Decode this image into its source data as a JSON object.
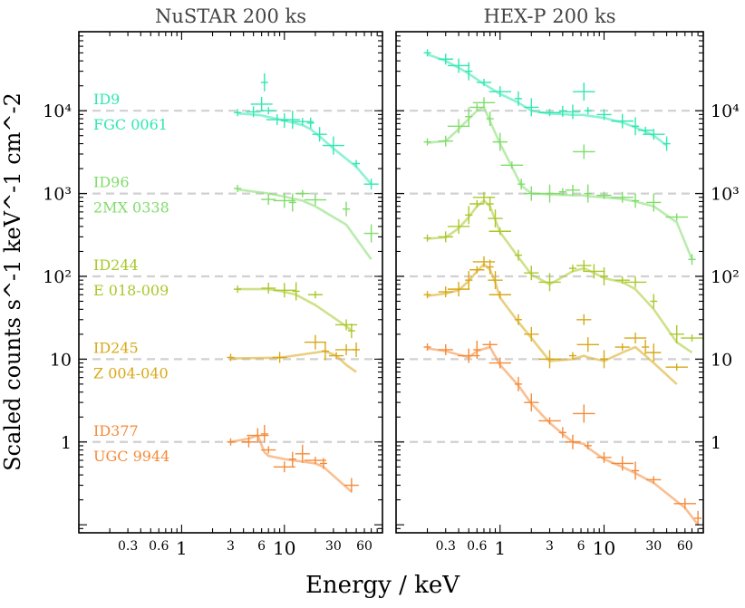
{
  "chart_data": [
    {
      "type": "line",
      "title": "NuSTAR 200 ks",
      "xlabel": "Energy / keV",
      "ylabel": "Scaled counts s^-1 keV^-1 cm^-2",
      "xscale": "log",
      "yscale": "log",
      "xlim": [
        0.1,
        90
      ],
      "ylim": [
        0.08,
        90000
      ],
      "xticks": [
        0.3,
        0.6,
        1,
        3,
        6,
        10,
        30,
        60
      ],
      "xtick_labels": [
        "0.3",
        "0.6",
        "1",
        "3",
        "6",
        "10",
        "30",
        "60"
      ],
      "yticks": [
        1,
        10,
        100,
        1000,
        10000
      ],
      "ytick_labels": [
        "1",
        "10",
        "10²",
        "10³",
        "10⁴"
      ],
      "reference_lines_y": [
        1,
        10,
        100,
        1000,
        10000
      ],
      "series": [
        {
          "name": "ID9",
          "label": "FGC 0061",
          "color": "#2ee8b0",
          "x": [
            3.5,
            5.0,
            6.0,
            6.4,
            7.0,
            8.5,
            10,
            12,
            15,
            18,
            22,
            30,
            50,
            70
          ],
          "y": [
            9500,
            9700,
            12000,
            22000,
            10000,
            7800,
            7600,
            7800,
            7400,
            7100,
            5200,
            3800,
            2300,
            1300
          ],
          "model_y": [
            9300,
            9000,
            8800,
            8600,
            8400,
            8000,
            7600,
            7200,
            6700,
            6000,
            4900,
            3500,
            2100,
            1300
          ]
        },
        {
          "name": "ID96",
          "label": "2MX 0338",
          "color": "#7fdc6a",
          "x": [
            3.5,
            7.0,
            10,
            12,
            15,
            20,
            40,
            70
          ],
          "y": [
            1150,
            850,
            820,
            780,
            1000,
            840,
            650,
            330
          ],
          "model_y": [
            1120,
            1000,
            920,
            870,
            820,
            700,
            420,
            160
          ]
        },
        {
          "name": "ID244",
          "label": "E 018-009",
          "color": "#a8c82a",
          "x": [
            3.5,
            7.0,
            10,
            13,
            20,
            40,
            45
          ],
          "y": [
            70,
            72,
            68,
            66,
            60,
            26,
            22
          ],
          "model_y": [
            70,
            70,
            65,
            60,
            45,
            25,
            22
          ]
        },
        {
          "name": "ID245",
          "label": "Z 004-040",
          "color": "#d8a818",
          "x": [
            3.0,
            9.0,
            20,
            25,
            32,
            40,
            50
          ],
          "y": [
            10.5,
            10.5,
            16,
            12.5,
            11,
            13,
            13
          ],
          "model_y": [
            10.2,
            10.4,
            12,
            12.5,
            11,
            8.5,
            7
          ]
        },
        {
          "name": "ID377",
          "label": "UGC 9944",
          "color": "#f58a38",
          "x": [
            3.0,
            4.5,
            5.5,
            6.4,
            7.0,
            10,
            12,
            15,
            20,
            24,
            45
          ],
          "y": [
            1.0,
            1.0,
            1.2,
            1.25,
            0.8,
            0.5,
            0.62,
            0.72,
            0.6,
            0.55,
            0.3
          ],
          "model_y": [
            1.0,
            1.1,
            1.2,
            0.75,
            0.68,
            0.62,
            0.6,
            0.58,
            0.55,
            0.5,
            0.25
          ]
        }
      ]
    },
    {
      "type": "line",
      "title": "HEX-P 200 ks",
      "xlabel": "Energy / keV",
      "xscale": "log",
      "yscale": "log",
      "xlim": [
        0.1,
        90
      ],
      "ylim": [
        0.08,
        90000
      ],
      "xticks": [
        0.3,
        0.6,
        1,
        3,
        6,
        10,
        30,
        60
      ],
      "xtick_labels": [
        "0.3",
        "0.6",
        "1",
        "3",
        "6",
        "10",
        "30",
        "60"
      ],
      "yticks": [
        1,
        10,
        100,
        1000,
        10000
      ],
      "ytick_labels": [
        "1",
        "10",
        "10²",
        "10³",
        "10⁴"
      ],
      "reference_lines_y": [
        1,
        10,
        100,
        1000,
        10000
      ],
      "series": [
        {
          "name": "ID9",
          "color": "#2ee8b0",
          "x": [
            0.2,
            0.3,
            0.4,
            0.5,
            0.7,
            1.0,
            1.5,
            2.0,
            3.0,
            4.0,
            5.0,
            6.4,
            7.0,
            10,
            15,
            20,
            25,
            30,
            40
          ],
          "y": [
            50000,
            42000,
            35000,
            30000,
            22000,
            17000,
            14000,
            11000,
            9500,
            9800,
            9700,
            17000,
            10000,
            9000,
            7500,
            6500,
            5800,
            5200,
            4000
          ],
          "model_y": [
            48000,
            40000,
            33000,
            28000,
            21000,
            16000,
            12500,
            10000,
            9200,
            9100,
            8900,
            8900,
            8700,
            8200,
            7200,
            6300,
            5600,
            5000,
            3800
          ]
        },
        {
          "name": "ID96",
          "color": "#7fdc6a",
          "x": [
            0.2,
            0.3,
            0.4,
            0.5,
            0.6,
            0.7,
            0.8,
            1.0,
            1.3,
            1.6,
            2.0,
            3.0,
            4.0,
            5.0,
            6.4,
            7.0,
            10,
            15,
            20,
            30,
            50,
            70
          ],
          "y": [
            4200,
            4300,
            6500,
            8500,
            11000,
            12500,
            8000,
            4200,
            2200,
            1300,
            1000,
            1000,
            1050,
            1100,
            3200,
            1000,
            950,
            900,
            820,
            780,
            520,
            160
          ],
          "model_y": [
            4100,
            4300,
            6000,
            8000,
            10000,
            11000,
            7500,
            4000,
            2100,
            1250,
            1000,
            980,
            960,
            950,
            950,
            930,
            900,
            860,
            800,
            700,
            450,
            160
          ]
        },
        {
          "name": "ID244",
          "color": "#a8c82a",
          "x": [
            0.2,
            0.3,
            0.4,
            0.5,
            0.6,
            0.7,
            0.8,
            0.9,
            1.0,
            1.5,
            2.0,
            3.0,
            5.0,
            6.4,
            8.0,
            10,
            15,
            20,
            30,
            50,
            70
          ],
          "y": [
            290,
            300,
            400,
            550,
            750,
            900,
            750,
            500,
            350,
            180,
            110,
            85,
            125,
            135,
            115,
            100,
            90,
            85,
            50,
            20,
            18
          ],
          "model_y": [
            285,
            295,
            380,
            520,
            700,
            820,
            700,
            480,
            340,
            170,
            105,
            80,
            115,
            125,
            110,
            95,
            85,
            70,
            40,
            16,
            12
          ]
        },
        {
          "name": "ID245",
          "color": "#d8a818",
          "x": [
            0.2,
            0.3,
            0.4,
            0.5,
            0.6,
            0.7,
            0.8,
            0.9,
            1.0,
            1.5,
            2.0,
            3.0,
            5.0,
            6.4,
            7.0,
            10,
            15,
            20,
            25,
            30,
            50
          ],
          "y": [
            60,
            65,
            70,
            90,
            120,
            150,
            130,
            90,
            60,
            30,
            20,
            10,
            11,
            30,
            15,
            10,
            14,
            18,
            14,
            12,
            8
          ],
          "model_y": [
            58,
            62,
            68,
            88,
            115,
            140,
            120,
            85,
            55,
            28,
            18,
            9.5,
            10,
            11,
            10.5,
            9.5,
            12,
            14,
            11,
            9,
            5
          ]
        },
        {
          "name": "ID377",
          "color": "#f58a38",
          "x": [
            0.2,
            0.3,
            0.5,
            0.6,
            0.8,
            1.0,
            1.5,
            2.0,
            3.0,
            4.0,
            5.0,
            6.4,
            7.0,
            10,
            15,
            20,
            30,
            60,
            80
          ],
          "y": [
            14,
            13,
            11,
            13,
            15,
            9,
            5,
            3,
            1.8,
            1.3,
            1.0,
            2.2,
            0.9,
            0.65,
            0.55,
            0.45,
            0.35,
            0.18,
            0.12
          ],
          "model_y": [
            13.5,
            12.5,
            10.5,
            12.5,
            14,
            8.5,
            4.8,
            2.9,
            1.7,
            1.25,
            1.0,
            0.95,
            0.85,
            0.62,
            0.5,
            0.42,
            0.32,
            0.16,
            0.1
          ]
        }
      ]
    }
  ]
}
